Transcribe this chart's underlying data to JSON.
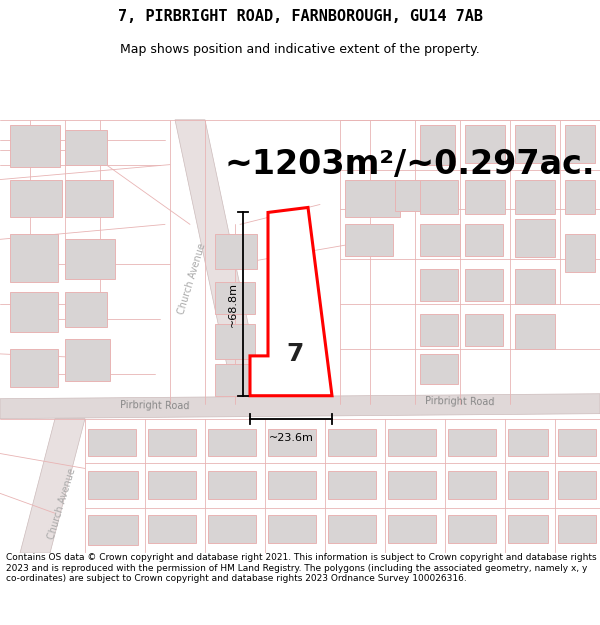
{
  "title": "7, PIRBRIGHT ROAD, FARNBOROUGH, GU14 7AB",
  "subtitle": "Map shows position and indicative extent of the property.",
  "area_text": "~1203m²/~0.297ac.",
  "width_label": "~23.6m",
  "height_label": "~68.8m",
  "property_number": "7",
  "road_label_pirbright1": "Pirbright Road",
  "road_label_pirbright2": "Pirbright Road",
  "road_label_church1": "Church Avenue",
  "road_label_church2": "Church Avenue",
  "footer_text": "Contains OS data © Crown copyright and database right 2021. This information is subject to Crown copyright and database rights 2023 and is reproduced with the permission of HM Land Registry. The polygons (including the associated geometry, namely x, y co-ordinates) are subject to Crown copyright and database rights 2023 Ordnance Survey 100026316.",
  "bg_color": "#ffffff",
  "map_bg": "#ffffff",
  "road_gray_fill": "#e0dada",
  "road_line_color": "#e8b4b4",
  "property_fill": "#ffffff",
  "property_edge": "#ff0000",
  "building_fill": "#d8d4d4",
  "building_edge": "#e8b4b4",
  "dim_color": "#000000",
  "title_fontsize": 11,
  "subtitle_fontsize": 9,
  "area_fontsize": 24,
  "footer_fontsize": 6.5,
  "road_label_fontsize": 7,
  "church_label_fontsize": 7
}
